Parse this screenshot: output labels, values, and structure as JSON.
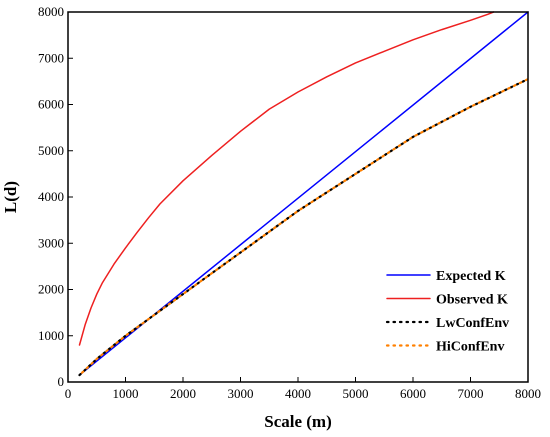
{
  "chart_data": {
    "type": "line",
    "title": "",
    "xlabel": "Scale (m)",
    "ylabel": "L(d)",
    "xlim": [
      0,
      8000
    ],
    "ylim": [
      0,
      8000
    ],
    "xticks": [
      0,
      1000,
      2000,
      3000,
      4000,
      5000,
      6000,
      7000,
      8000
    ],
    "yticks": [
      0,
      1000,
      2000,
      3000,
      4000,
      5000,
      6000,
      7000,
      8000
    ],
    "grid": false,
    "legend_position": "bottom-right",
    "series": [
      {
        "name": "Expected K",
        "color": "#0000ff",
        "style": "solid",
        "x": [
          200,
          8000
        ],
        "y": [
          150,
          8000
        ]
      },
      {
        "name": "Observed K",
        "color": "#ee2020",
        "style": "solid",
        "x": [
          200,
          300,
          400,
          500,
          600,
          800,
          1000,
          1200,
          1400,
          1600,
          2000,
          2500,
          3000,
          3500,
          4000,
          4500,
          5000,
          5500,
          6000,
          6500,
          7000,
          7300,
          7400
        ],
        "y": [
          800,
          1250,
          1600,
          1900,
          2150,
          2550,
          2900,
          3230,
          3550,
          3850,
          4350,
          4900,
          5420,
          5900,
          6270,
          6600,
          6900,
          7150,
          7400,
          7620,
          7820,
          7950,
          8000
        ]
      },
      {
        "name": "LwConfEnv",
        "color": "#000000",
        "style": "dotted",
        "x": [
          200,
          500,
          1000,
          1500,
          2000,
          3000,
          4000,
          5000,
          6000,
          7000,
          8000
        ],
        "y": [
          150,
          500,
          1000,
          1450,
          1900,
          2800,
          3700,
          4500,
          5300,
          5950,
          6550
        ]
      },
      {
        "name": "HiConfEnv",
        "color": "#ff8000",
        "style": "dotted",
        "x": [
          200,
          500,
          1000,
          1500,
          2000,
          3000,
          4000,
          5000,
          6000,
          7000,
          8000
        ],
        "y": [
          150,
          500,
          1000,
          1450,
          1900,
          2800,
          3700,
          4500,
          5300,
          5950,
          6550
        ]
      }
    ]
  }
}
